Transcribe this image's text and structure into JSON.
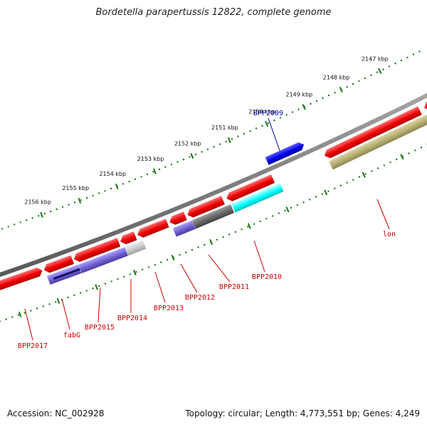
{
  "title": "Bordetella parapertussis 12822, complete genome",
  "footer": {
    "accession": "Accession: NC_002928",
    "summary": "Topology: circular; Length: 4,773,551 bp; Genes: 4,249"
  },
  "colors": {
    "backbone": "#777777",
    "tick": "#1a7a1a",
    "gene_red": "#ee0000",
    "label_red": "#cc0000",
    "label_blue": "#0000aa",
    "cyan": "#00ffff",
    "olive": "#b5ad70",
    "purple": "#7060d0",
    "gray": "#666666",
    "lightgray": "#c8c8c8",
    "blue": "#0000ee"
  },
  "ruler_labels": [
    "2147 kbp",
    "2148 kbp",
    "2149 kbp",
    "2150 kbp",
    "2151 kbp",
    "2152 kbp",
    "2153 kbp",
    "2154 kbp",
    "2155 kbp",
    "2156 kbp"
  ],
  "genes": [
    {
      "label": "BPP2009",
      "color": "blue",
      "label_color": "label_blue"
    },
    {
      "label": "lon",
      "color": "red",
      "label_color": "label_red"
    },
    {
      "label": "BPP2010",
      "color": "red",
      "label_color": "label_red"
    },
    {
      "label": "BPP2011",
      "color": "gray",
      "label_color": "label_red"
    },
    {
      "label": "BPP2012",
      "color": "red",
      "label_color": "label_red"
    },
    {
      "label": "BPP2013",
      "color": "red",
      "label_color": "label_red"
    },
    {
      "label": "BPP2014",
      "color": "lightgray",
      "label_color": "label_red"
    },
    {
      "label": "BPP2015",
      "color": "purple",
      "label_color": "label_red"
    },
    {
      "label": "fabG",
      "color": "red",
      "label_color": "label_red"
    },
    {
      "label": "BPP2017",
      "color": "red",
      "label_color": "label_red"
    }
  ]
}
